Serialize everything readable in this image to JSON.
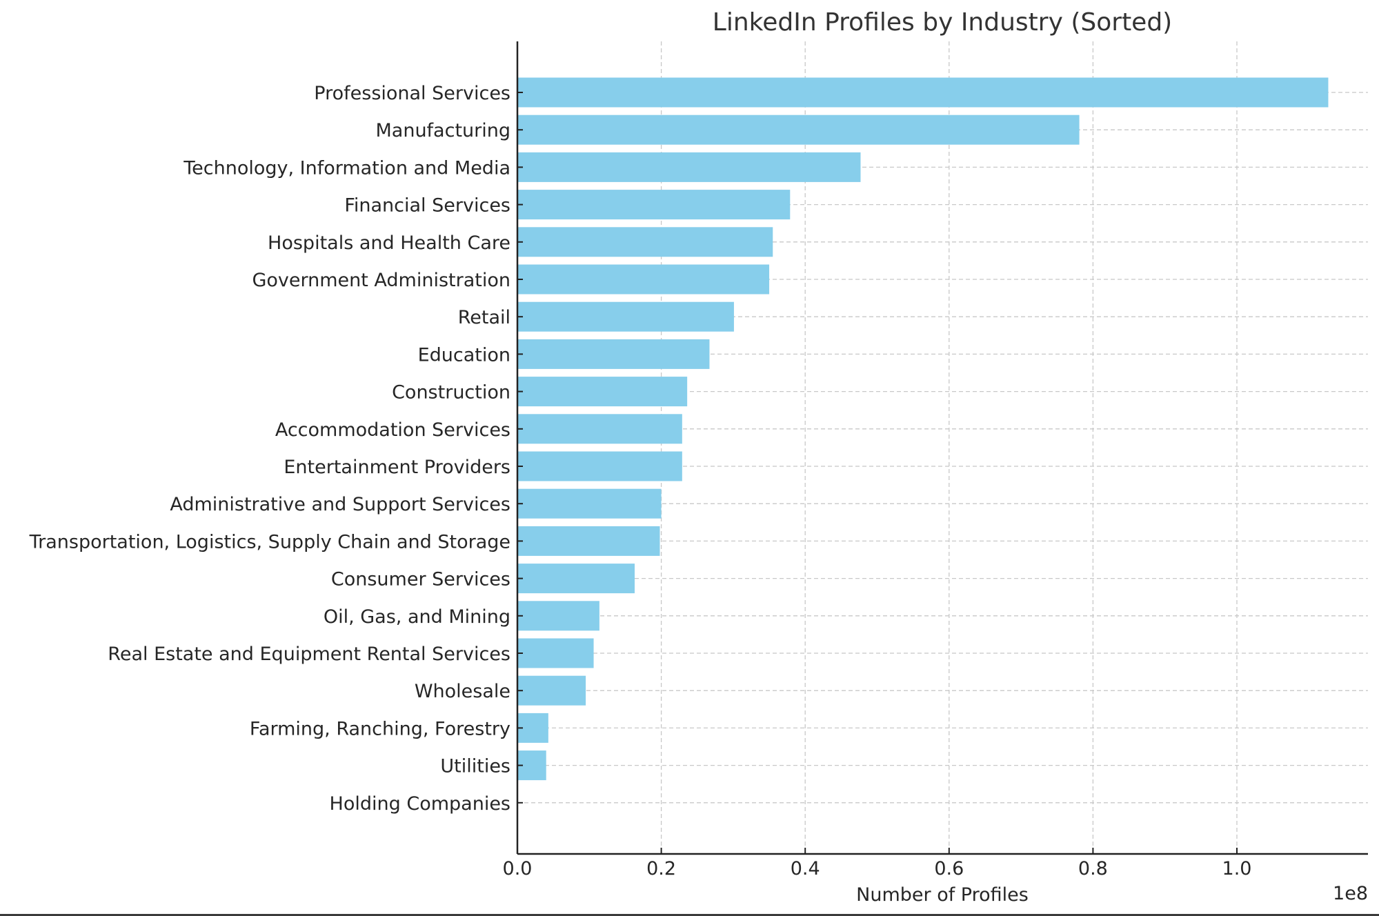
{
  "chart_data": {
    "type": "bar",
    "orientation": "horizontal",
    "title": "LinkedIn Profiles by Industry (Sorted)",
    "xlabel": "Number of Profiles",
    "ylabel": "",
    "x_scale_label": "1e8",
    "xlim": [
      0,
      1.18
    ],
    "x_ticks": [
      "0.0",
      "0.2",
      "0.4",
      "0.6",
      "0.8",
      "1.0"
    ],
    "x_tick_values": [
      0,
      0.2,
      0.4,
      0.6,
      0.8,
      1.0
    ],
    "grid": true,
    "bar_color": "#87CEEB",
    "categories": [
      "Professional Services",
      "Manufacturing",
      "Technology, Information and Media",
      "Financial Services",
      "Hospitals and Health Care",
      "Government Administration",
      "Retail",
      "Education",
      "Construction",
      "Accommodation Services",
      "Entertainment Providers",
      "Administrative and Support Services",
      "Transportation, Logistics, Supply Chain and Storage",
      "Consumer Services",
      "Oil, Gas, and Mining",
      "Real Estate and Equipment Rental Services",
      "Wholesale",
      "Farming, Ranching, Forestry",
      "Utilities",
      "Holding Companies"
    ],
    "values": [
      1.127,
      0.781,
      0.477,
      0.379,
      0.355,
      0.35,
      0.301,
      0.267,
      0.236,
      0.229,
      0.229,
      0.2,
      0.198,
      0.163,
      0.114,
      0.106,
      0.095,
      0.043,
      0.04,
      0.0
    ]
  }
}
